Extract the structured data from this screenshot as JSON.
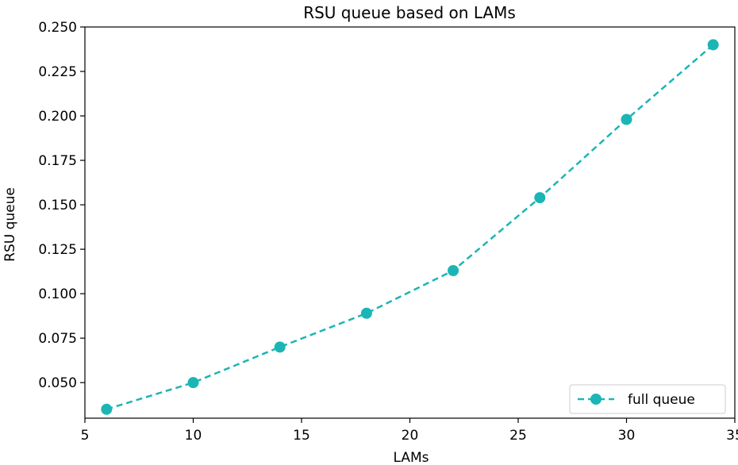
{
  "chart_data": {
    "type": "line",
    "title": "RSU queue based on LAMs",
    "xlabel": "LAMs",
    "ylabel": "RSU queue",
    "xlim": [
      5,
      35
    ],
    "ylim": [
      0.03,
      0.25
    ],
    "xticks": [
      5,
      10,
      15,
      20,
      25,
      30,
      35
    ],
    "xtick_labels": [
      "5",
      "10",
      "15",
      "20",
      "25",
      "30",
      "35"
    ],
    "yticks": [
      0.05,
      0.075,
      0.1,
      0.125,
      0.15,
      0.175,
      0.2,
      0.225,
      0.25
    ],
    "ytick_labels": [
      "0.050",
      "0.075",
      "0.100",
      "0.125",
      "0.150",
      "0.175",
      "0.200",
      "0.225",
      "0.250"
    ],
    "grid": false,
    "legend_position": "bottom-right",
    "series": [
      {
        "name": "full queue",
        "color": "#1cb5b5",
        "line_style": "dashed",
        "marker": "circle",
        "x": [
          6,
          10,
          14,
          18,
          22,
          26,
          30,
          34
        ],
        "y": [
          0.035,
          0.05,
          0.07,
          0.089,
          0.113,
          0.154,
          0.198,
          0.24
        ]
      }
    ]
  }
}
